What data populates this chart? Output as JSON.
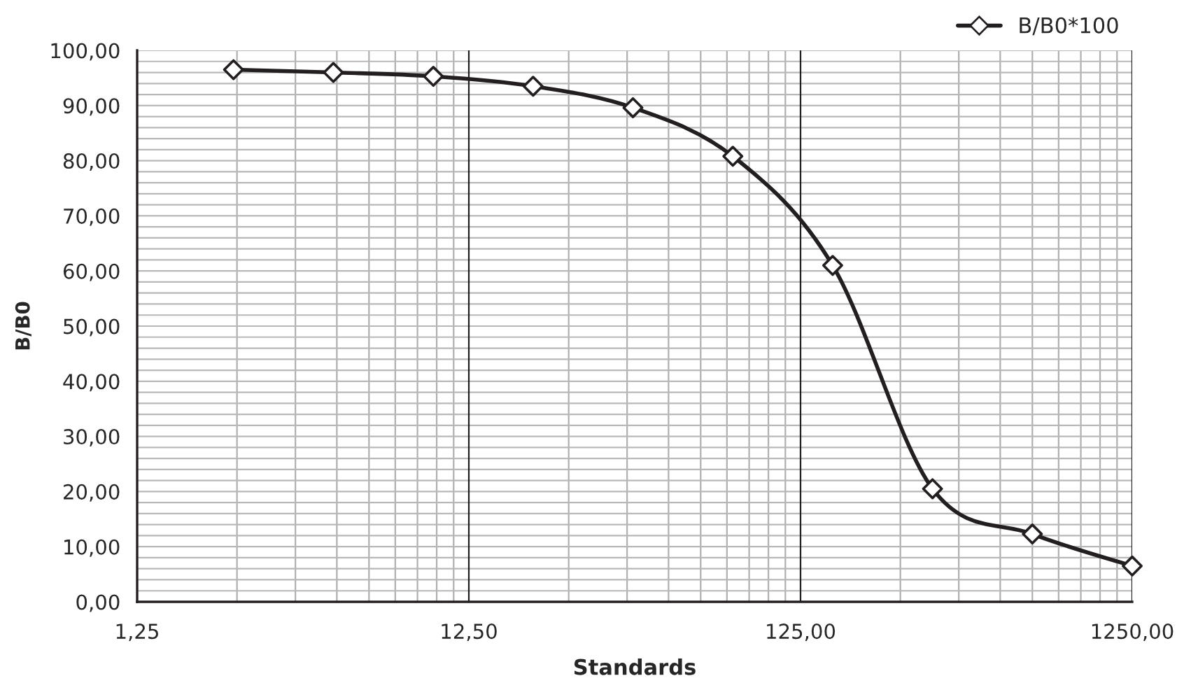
{
  "chart_data": {
    "type": "line",
    "xlabel": "Standards",
    "ylabel": "B/B0",
    "log": "x",
    "x": [
      2.44,
      4.88,
      9.77,
      19.53,
      39.06,
      78.13,
      156.25,
      312.5,
      625,
      1250
    ],
    "series": [
      {
        "name": "B/B0*100",
        "color": "#231f20",
        "values": [
          96.5,
          96,
          95.3,
          93.5,
          89.6,
          80.8,
          61,
          20.5,
          12.3,
          6.5
        ]
      }
    ],
    "xlim": [
      1.25,
      1250
    ],
    "xticks": [
      {
        "value": 1.25,
        "label": "1,25"
      },
      {
        "value": 12.5,
        "label": "12,50"
      },
      {
        "value": 125,
        "label": "125,00"
      },
      {
        "value": 1250,
        "label": "1250,00"
      }
    ],
    "ylim": [
      0,
      100
    ],
    "yticks": [
      {
        "value": 0,
        "label": "0,00"
      },
      {
        "value": 10,
        "label": "10,00"
      },
      {
        "value": 20,
        "label": "20,00"
      },
      {
        "value": 30,
        "label": "30,00"
      },
      {
        "value": 40,
        "label": "40,00"
      },
      {
        "value": 50,
        "label": "50,00"
      },
      {
        "value": 60,
        "label": "60,00"
      },
      {
        "value": 70,
        "label": "70,00"
      },
      {
        "value": 80,
        "label": "80,00"
      },
      {
        "value": 90,
        "label": "90,00"
      },
      {
        "value": 100,
        "label": "100,00"
      }
    ],
    "grid": true,
    "legend": "top right",
    "marker": "diamond",
    "line_style": "solid"
  }
}
